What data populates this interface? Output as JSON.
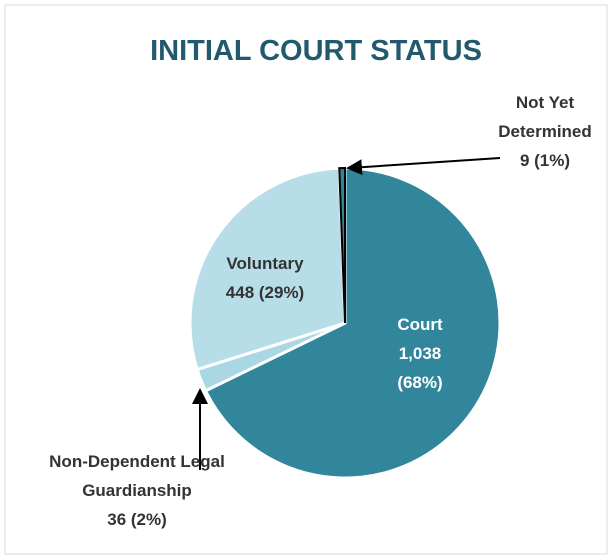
{
  "chart_data": {
    "type": "pie",
    "title": "INITIAL COURT STATUS",
    "categories": [
      "Court",
      "Non-Dependent Legal Guardianship",
      "Voluntary",
      "Not Yet Determined"
    ],
    "values": [
      1038,
      36,
      448,
      9
    ],
    "value_labels": [
      "1,038 (68%)",
      "36 (2%)",
      "448 (29%)",
      "9 (1%)"
    ],
    "colors": [
      "#31869b",
      "#a9d7e3",
      "#b7dde8",
      "#31869b"
    ]
  }
}
